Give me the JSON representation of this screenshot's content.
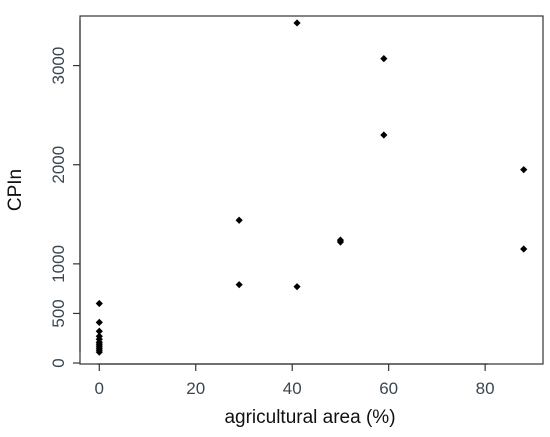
{
  "chart_data": {
    "type": "scatter",
    "xlabel": "agricultural area (%)",
    "ylabel": "CPIn",
    "xlim": [
      -4,
      92
    ],
    "ylim": [
      -10,
      3500
    ],
    "xticks": [
      0,
      20,
      40,
      60,
      80
    ],
    "yticks": [
      0,
      500,
      1000,
      2000,
      3000
    ],
    "grid": false,
    "legend": "none",
    "point_color": "#000000",
    "axis_color": "#333333",
    "points": [
      {
        "x": 0,
        "y": 600
      },
      {
        "x": 0,
        "y": 410
      },
      {
        "x": 0,
        "y": 320
      },
      {
        "x": 0,
        "y": 270
      },
      {
        "x": 0,
        "y": 240
      },
      {
        "x": 0,
        "y": 210
      },
      {
        "x": 0,
        "y": 190
      },
      {
        "x": 0,
        "y": 170
      },
      {
        "x": 0,
        "y": 150
      },
      {
        "x": 0,
        "y": 130
      },
      {
        "x": 0,
        "y": 110
      },
      {
        "x": 29,
        "y": 1440
      },
      {
        "x": 29,
        "y": 790
      },
      {
        "x": 41,
        "y": 3430
      },
      {
        "x": 41,
        "y": 770
      },
      {
        "x": 50,
        "y": 1240
      },
      {
        "x": 50,
        "y": 1220
      },
      {
        "x": 59,
        "y": 3070
      },
      {
        "x": 59,
        "y": 2300
      },
      {
        "x": 88,
        "y": 1950
      },
      {
        "x": 88,
        "y": 1150
      }
    ]
  }
}
